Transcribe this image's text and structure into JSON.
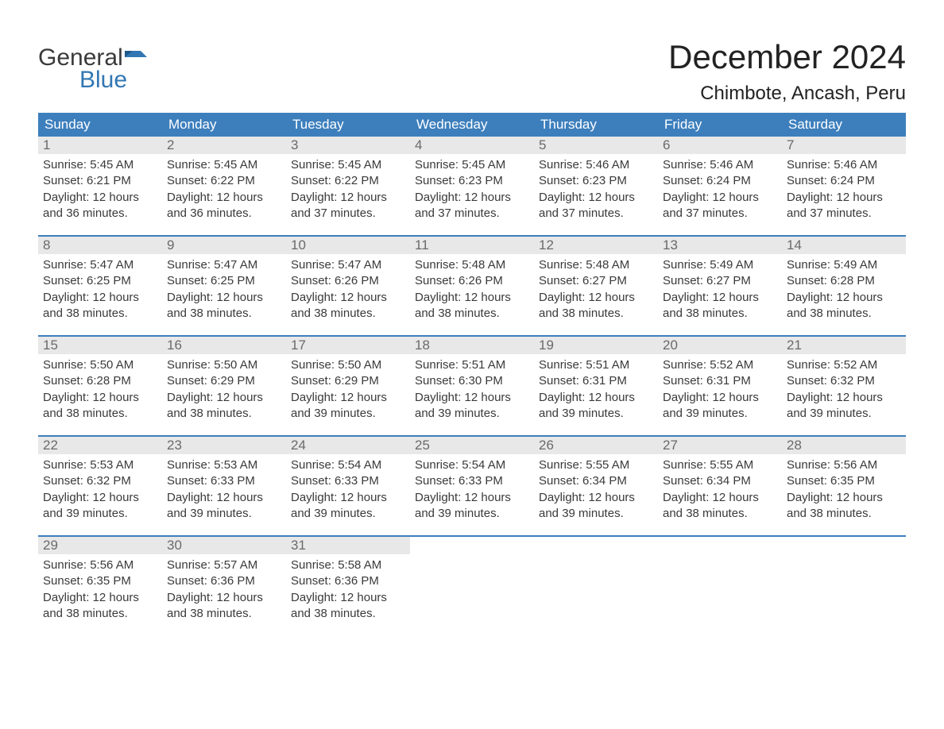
{
  "logo": {
    "word1": "General",
    "word2": "Blue",
    "word1_color": "#3a3a3a",
    "word2_color": "#3277b3",
    "flag_color": "#3277b3"
  },
  "title": "December 2024",
  "location": "Chimbote, Ancash, Peru",
  "colors": {
    "header_bg": "#3d7fbd",
    "header_text": "#ffffff",
    "daynum_bg": "#e8e8e8",
    "daynum_text": "#6a6a6a",
    "body_text": "#3a3a3a",
    "week_border": "#3d7fbd",
    "page_bg": "#ffffff"
  },
  "typography": {
    "title_fontsize": 42,
    "location_fontsize": 24,
    "dayheader_fontsize": 17,
    "daynum_fontsize": 17,
    "body_fontsize": 15,
    "font_family": "Arial"
  },
  "day_headers": [
    "Sunday",
    "Monday",
    "Tuesday",
    "Wednesday",
    "Thursday",
    "Friday",
    "Saturday"
  ],
  "weeks": [
    [
      {
        "num": "1",
        "sunrise": "Sunrise: 5:45 AM",
        "sunset": "Sunset: 6:21 PM",
        "daylight1": "Daylight: 12 hours",
        "daylight2": "and 36 minutes."
      },
      {
        "num": "2",
        "sunrise": "Sunrise: 5:45 AM",
        "sunset": "Sunset: 6:22 PM",
        "daylight1": "Daylight: 12 hours",
        "daylight2": "and 36 minutes."
      },
      {
        "num": "3",
        "sunrise": "Sunrise: 5:45 AM",
        "sunset": "Sunset: 6:22 PM",
        "daylight1": "Daylight: 12 hours",
        "daylight2": "and 37 minutes."
      },
      {
        "num": "4",
        "sunrise": "Sunrise: 5:45 AM",
        "sunset": "Sunset: 6:23 PM",
        "daylight1": "Daylight: 12 hours",
        "daylight2": "and 37 minutes."
      },
      {
        "num": "5",
        "sunrise": "Sunrise: 5:46 AM",
        "sunset": "Sunset: 6:23 PM",
        "daylight1": "Daylight: 12 hours",
        "daylight2": "and 37 minutes."
      },
      {
        "num": "6",
        "sunrise": "Sunrise: 5:46 AM",
        "sunset": "Sunset: 6:24 PM",
        "daylight1": "Daylight: 12 hours",
        "daylight2": "and 37 minutes."
      },
      {
        "num": "7",
        "sunrise": "Sunrise: 5:46 AM",
        "sunset": "Sunset: 6:24 PM",
        "daylight1": "Daylight: 12 hours",
        "daylight2": "and 37 minutes."
      }
    ],
    [
      {
        "num": "8",
        "sunrise": "Sunrise: 5:47 AM",
        "sunset": "Sunset: 6:25 PM",
        "daylight1": "Daylight: 12 hours",
        "daylight2": "and 38 minutes."
      },
      {
        "num": "9",
        "sunrise": "Sunrise: 5:47 AM",
        "sunset": "Sunset: 6:25 PM",
        "daylight1": "Daylight: 12 hours",
        "daylight2": "and 38 minutes."
      },
      {
        "num": "10",
        "sunrise": "Sunrise: 5:47 AM",
        "sunset": "Sunset: 6:26 PM",
        "daylight1": "Daylight: 12 hours",
        "daylight2": "and 38 minutes."
      },
      {
        "num": "11",
        "sunrise": "Sunrise: 5:48 AM",
        "sunset": "Sunset: 6:26 PM",
        "daylight1": "Daylight: 12 hours",
        "daylight2": "and 38 minutes."
      },
      {
        "num": "12",
        "sunrise": "Sunrise: 5:48 AM",
        "sunset": "Sunset: 6:27 PM",
        "daylight1": "Daylight: 12 hours",
        "daylight2": "and 38 minutes."
      },
      {
        "num": "13",
        "sunrise": "Sunrise: 5:49 AM",
        "sunset": "Sunset: 6:27 PM",
        "daylight1": "Daylight: 12 hours",
        "daylight2": "and 38 minutes."
      },
      {
        "num": "14",
        "sunrise": "Sunrise: 5:49 AM",
        "sunset": "Sunset: 6:28 PM",
        "daylight1": "Daylight: 12 hours",
        "daylight2": "and 38 minutes."
      }
    ],
    [
      {
        "num": "15",
        "sunrise": "Sunrise: 5:50 AM",
        "sunset": "Sunset: 6:28 PM",
        "daylight1": "Daylight: 12 hours",
        "daylight2": "and 38 minutes."
      },
      {
        "num": "16",
        "sunrise": "Sunrise: 5:50 AM",
        "sunset": "Sunset: 6:29 PM",
        "daylight1": "Daylight: 12 hours",
        "daylight2": "and 38 minutes."
      },
      {
        "num": "17",
        "sunrise": "Sunrise: 5:50 AM",
        "sunset": "Sunset: 6:29 PM",
        "daylight1": "Daylight: 12 hours",
        "daylight2": "and 39 minutes."
      },
      {
        "num": "18",
        "sunrise": "Sunrise: 5:51 AM",
        "sunset": "Sunset: 6:30 PM",
        "daylight1": "Daylight: 12 hours",
        "daylight2": "and 39 minutes."
      },
      {
        "num": "19",
        "sunrise": "Sunrise: 5:51 AM",
        "sunset": "Sunset: 6:31 PM",
        "daylight1": "Daylight: 12 hours",
        "daylight2": "and 39 minutes."
      },
      {
        "num": "20",
        "sunrise": "Sunrise: 5:52 AM",
        "sunset": "Sunset: 6:31 PM",
        "daylight1": "Daylight: 12 hours",
        "daylight2": "and 39 minutes."
      },
      {
        "num": "21",
        "sunrise": "Sunrise: 5:52 AM",
        "sunset": "Sunset: 6:32 PM",
        "daylight1": "Daylight: 12 hours",
        "daylight2": "and 39 minutes."
      }
    ],
    [
      {
        "num": "22",
        "sunrise": "Sunrise: 5:53 AM",
        "sunset": "Sunset: 6:32 PM",
        "daylight1": "Daylight: 12 hours",
        "daylight2": "and 39 minutes."
      },
      {
        "num": "23",
        "sunrise": "Sunrise: 5:53 AM",
        "sunset": "Sunset: 6:33 PM",
        "daylight1": "Daylight: 12 hours",
        "daylight2": "and 39 minutes."
      },
      {
        "num": "24",
        "sunrise": "Sunrise: 5:54 AM",
        "sunset": "Sunset: 6:33 PM",
        "daylight1": "Daylight: 12 hours",
        "daylight2": "and 39 minutes."
      },
      {
        "num": "25",
        "sunrise": "Sunrise: 5:54 AM",
        "sunset": "Sunset: 6:33 PM",
        "daylight1": "Daylight: 12 hours",
        "daylight2": "and 39 minutes."
      },
      {
        "num": "26",
        "sunrise": "Sunrise: 5:55 AM",
        "sunset": "Sunset: 6:34 PM",
        "daylight1": "Daylight: 12 hours",
        "daylight2": "and 39 minutes."
      },
      {
        "num": "27",
        "sunrise": "Sunrise: 5:55 AM",
        "sunset": "Sunset: 6:34 PM",
        "daylight1": "Daylight: 12 hours",
        "daylight2": "and 38 minutes."
      },
      {
        "num": "28",
        "sunrise": "Sunrise: 5:56 AM",
        "sunset": "Sunset: 6:35 PM",
        "daylight1": "Daylight: 12 hours",
        "daylight2": "and 38 minutes."
      }
    ],
    [
      {
        "num": "29",
        "sunrise": "Sunrise: 5:56 AM",
        "sunset": "Sunset: 6:35 PM",
        "daylight1": "Daylight: 12 hours",
        "daylight2": "and 38 minutes."
      },
      {
        "num": "30",
        "sunrise": "Sunrise: 5:57 AM",
        "sunset": "Sunset: 6:36 PM",
        "daylight1": "Daylight: 12 hours",
        "daylight2": "and 38 minutes."
      },
      {
        "num": "31",
        "sunrise": "Sunrise: 5:58 AM",
        "sunset": "Sunset: 6:36 PM",
        "daylight1": "Daylight: 12 hours",
        "daylight2": "and 38 minutes."
      },
      {
        "empty": true
      },
      {
        "empty": true
      },
      {
        "empty": true
      },
      {
        "empty": true
      }
    ]
  ]
}
